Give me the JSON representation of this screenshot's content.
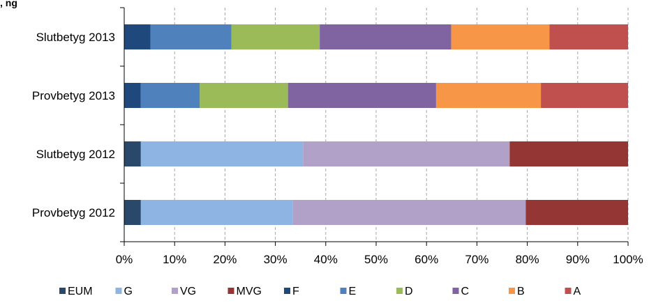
{
  "header_fragment": ", ng",
  "chart_data": {
    "type": "bar",
    "orientation": "horizontal",
    "stacked": "percent",
    "categories": [
      "Slutbetyg 2013",
      "Provbetyg 2013",
      "Slutbetyg 2012",
      "Provbetyg 2012"
    ],
    "x_ticks": [
      "0%",
      "10%",
      "20%",
      "30%",
      "40%",
      "50%",
      "60%",
      "70%",
      "80%",
      "90%",
      "100%"
    ],
    "xlim": [
      0,
      100
    ],
    "grid": "vertical dashed",
    "legend_position": "bottom",
    "series": [
      {
        "name": "EUM",
        "color": "#2a4869",
        "values": [
          null,
          null,
          3.3,
          3.3
        ]
      },
      {
        "name": "G",
        "color": "#8db4e2",
        "values": [
          null,
          null,
          32.2,
          30.2
        ]
      },
      {
        "name": "VG",
        "color": "#b1a0c7",
        "values": [
          null,
          null,
          41.0,
          46.2
        ]
      },
      {
        "name": "MVG",
        "color": "#943634",
        "values": [
          null,
          null,
          23.5,
          20.3
        ]
      },
      {
        "name": "F",
        "color": "#1f497d",
        "values": [
          5.2,
          3.3,
          null,
          null
        ]
      },
      {
        "name": "E",
        "color": "#4f81bd",
        "values": [
          16.1,
          11.7,
          null,
          null
        ]
      },
      {
        "name": "D",
        "color": "#9bbb59",
        "values": [
          17.5,
          17.5,
          null,
          null
        ]
      },
      {
        "name": "C",
        "color": "#8064a2",
        "values": [
          26.1,
          29.4,
          null,
          null
        ]
      },
      {
        "name": "B",
        "color": "#f79646",
        "values": [
          19.5,
          20.8,
          null,
          null
        ]
      },
      {
        "name": "A",
        "color": "#c0504d",
        "values": [
          15.6,
          17.3,
          null,
          null
        ]
      }
    ]
  }
}
